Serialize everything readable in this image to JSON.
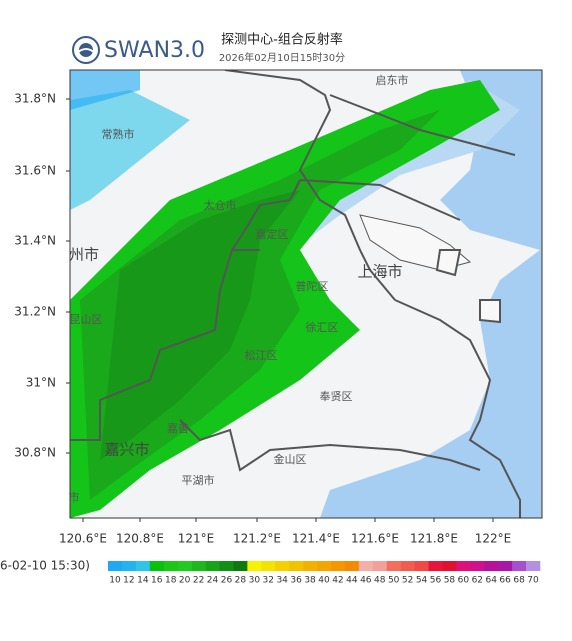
{
  "header": {
    "logo": "SWAN3.0",
    "title": "探测中心-组合反射率",
    "time": "2026年02月10日15时30分"
  },
  "map": {
    "lat_labels": [
      "31.8°N",
      "31.6°N",
      "31.4°N",
      "31.2°N",
      "31°N",
      "30.8°N"
    ],
    "lon_labels": [
      "120.6°E",
      "120.8°E",
      "121°E",
      "121.2°E",
      "121.4°E",
      "121.6°E",
      "121.8°E",
      "122°E"
    ],
    "places": [
      "启东市",
      "常熟市",
      "太仓市",
      "嘉定区",
      "州市",
      "上海市",
      "普陀区",
      "徐汇区",
      "昆山区",
      "松江区",
      "奉贤区",
      "嘉善",
      "嘉兴市",
      "金山区",
      "平湖市",
      "市"
    ]
  },
  "legend": {
    "time": "6-02-10 15:30)",
    "levels": [
      10,
      12,
      14,
      16,
      18,
      20,
      22,
      24,
      26,
      28,
      30,
      32,
      34,
      36,
      38,
      40,
      42,
      44,
      46,
      48,
      50,
      52,
      54,
      56,
      58,
      60,
      62,
      64,
      66,
      68,
      70
    ],
    "colors": [
      "#1ea8f5",
      "#23b4f0",
      "#2fc4e8",
      "#06c10d",
      "#19c716",
      "#20cc1f",
      "#1fb81c",
      "#17a417",
      "#138f13",
      "#0e7a0e",
      "#f6f200",
      "#f2e400",
      "#f4d000",
      "#f2c200",
      "#f4b000",
      "#f6a400",
      "#f69600",
      "#f48a00",
      "#f4b0a8",
      "#f4a09a",
      "#f46e5e",
      "#f45b50",
      "#f04a46",
      "#e8143c",
      "#e0102e",
      "#e0107a",
      "#d0108c",
      "#b81098",
      "#a818a8",
      "#a450d0",
      "#b490e0"
    ]
  }
}
